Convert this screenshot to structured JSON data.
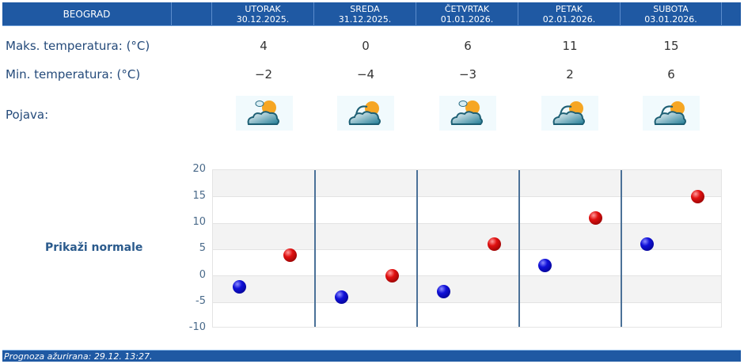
{
  "header": {
    "city": "BEOGRAD",
    "days": [
      {
        "name": "UTORAK",
        "date": "30.12.2025."
      },
      {
        "name": "SREDA",
        "date": "31.12.2025."
      },
      {
        "name": "ČETVRTAK",
        "date": "01.01.2026."
      },
      {
        "name": "PETAK",
        "date": "02.01.2026."
      },
      {
        "name": "SUBOTA",
        "date": "03.01.2026."
      }
    ]
  },
  "rows": {
    "max_label": "Maks. temperatura: (°C)",
    "min_label": "Min. temperatura: (°C)",
    "phenomenon_label": "Pojava:",
    "max": [
      "4",
      "0",
      "6",
      "11",
      "15"
    ],
    "min": [
      "−2",
      "−4",
      "−3",
      "2",
      "6"
    ],
    "icons": [
      "partly-cloudy-small-cloud-sun-icon",
      "cloudy-sun-icon",
      "partly-cloudy-small-cloud-sun-icon",
      "cloudy-sun-icon",
      "cloudy-sun-icon"
    ]
  },
  "normals_link": "Prikaži normale",
  "footer": {
    "updated": "Prognoza ažurirana:  29.12. 13:27."
  },
  "colors": {
    "header_bg": "#1f59a3",
    "min_dot": "#1010d8",
    "max_dot": "#e01010",
    "separator": "#4b7198"
  },
  "chart_data": {
    "type": "scatter",
    "categories": [
      "30.12.2025.",
      "31.12.2025.",
      "01.01.2026.",
      "02.01.2026.",
      "03.01.2026."
    ],
    "series": [
      {
        "name": "Min. temperatura",
        "color": "#1010d8",
        "values": [
          -2,
          -4,
          -3,
          2,
          6
        ]
      },
      {
        "name": "Maks. temperatura",
        "color": "#e01010",
        "values": [
          4,
          0,
          6,
          11,
          15
        ]
      }
    ],
    "yticks": [
      "20",
      "15",
      "10",
      "5",
      "0",
      "-5",
      "-10"
    ],
    "ylim": [
      -10,
      20
    ],
    "grid": true,
    "title": "",
    "xlabel": "",
    "ylabel": ""
  }
}
